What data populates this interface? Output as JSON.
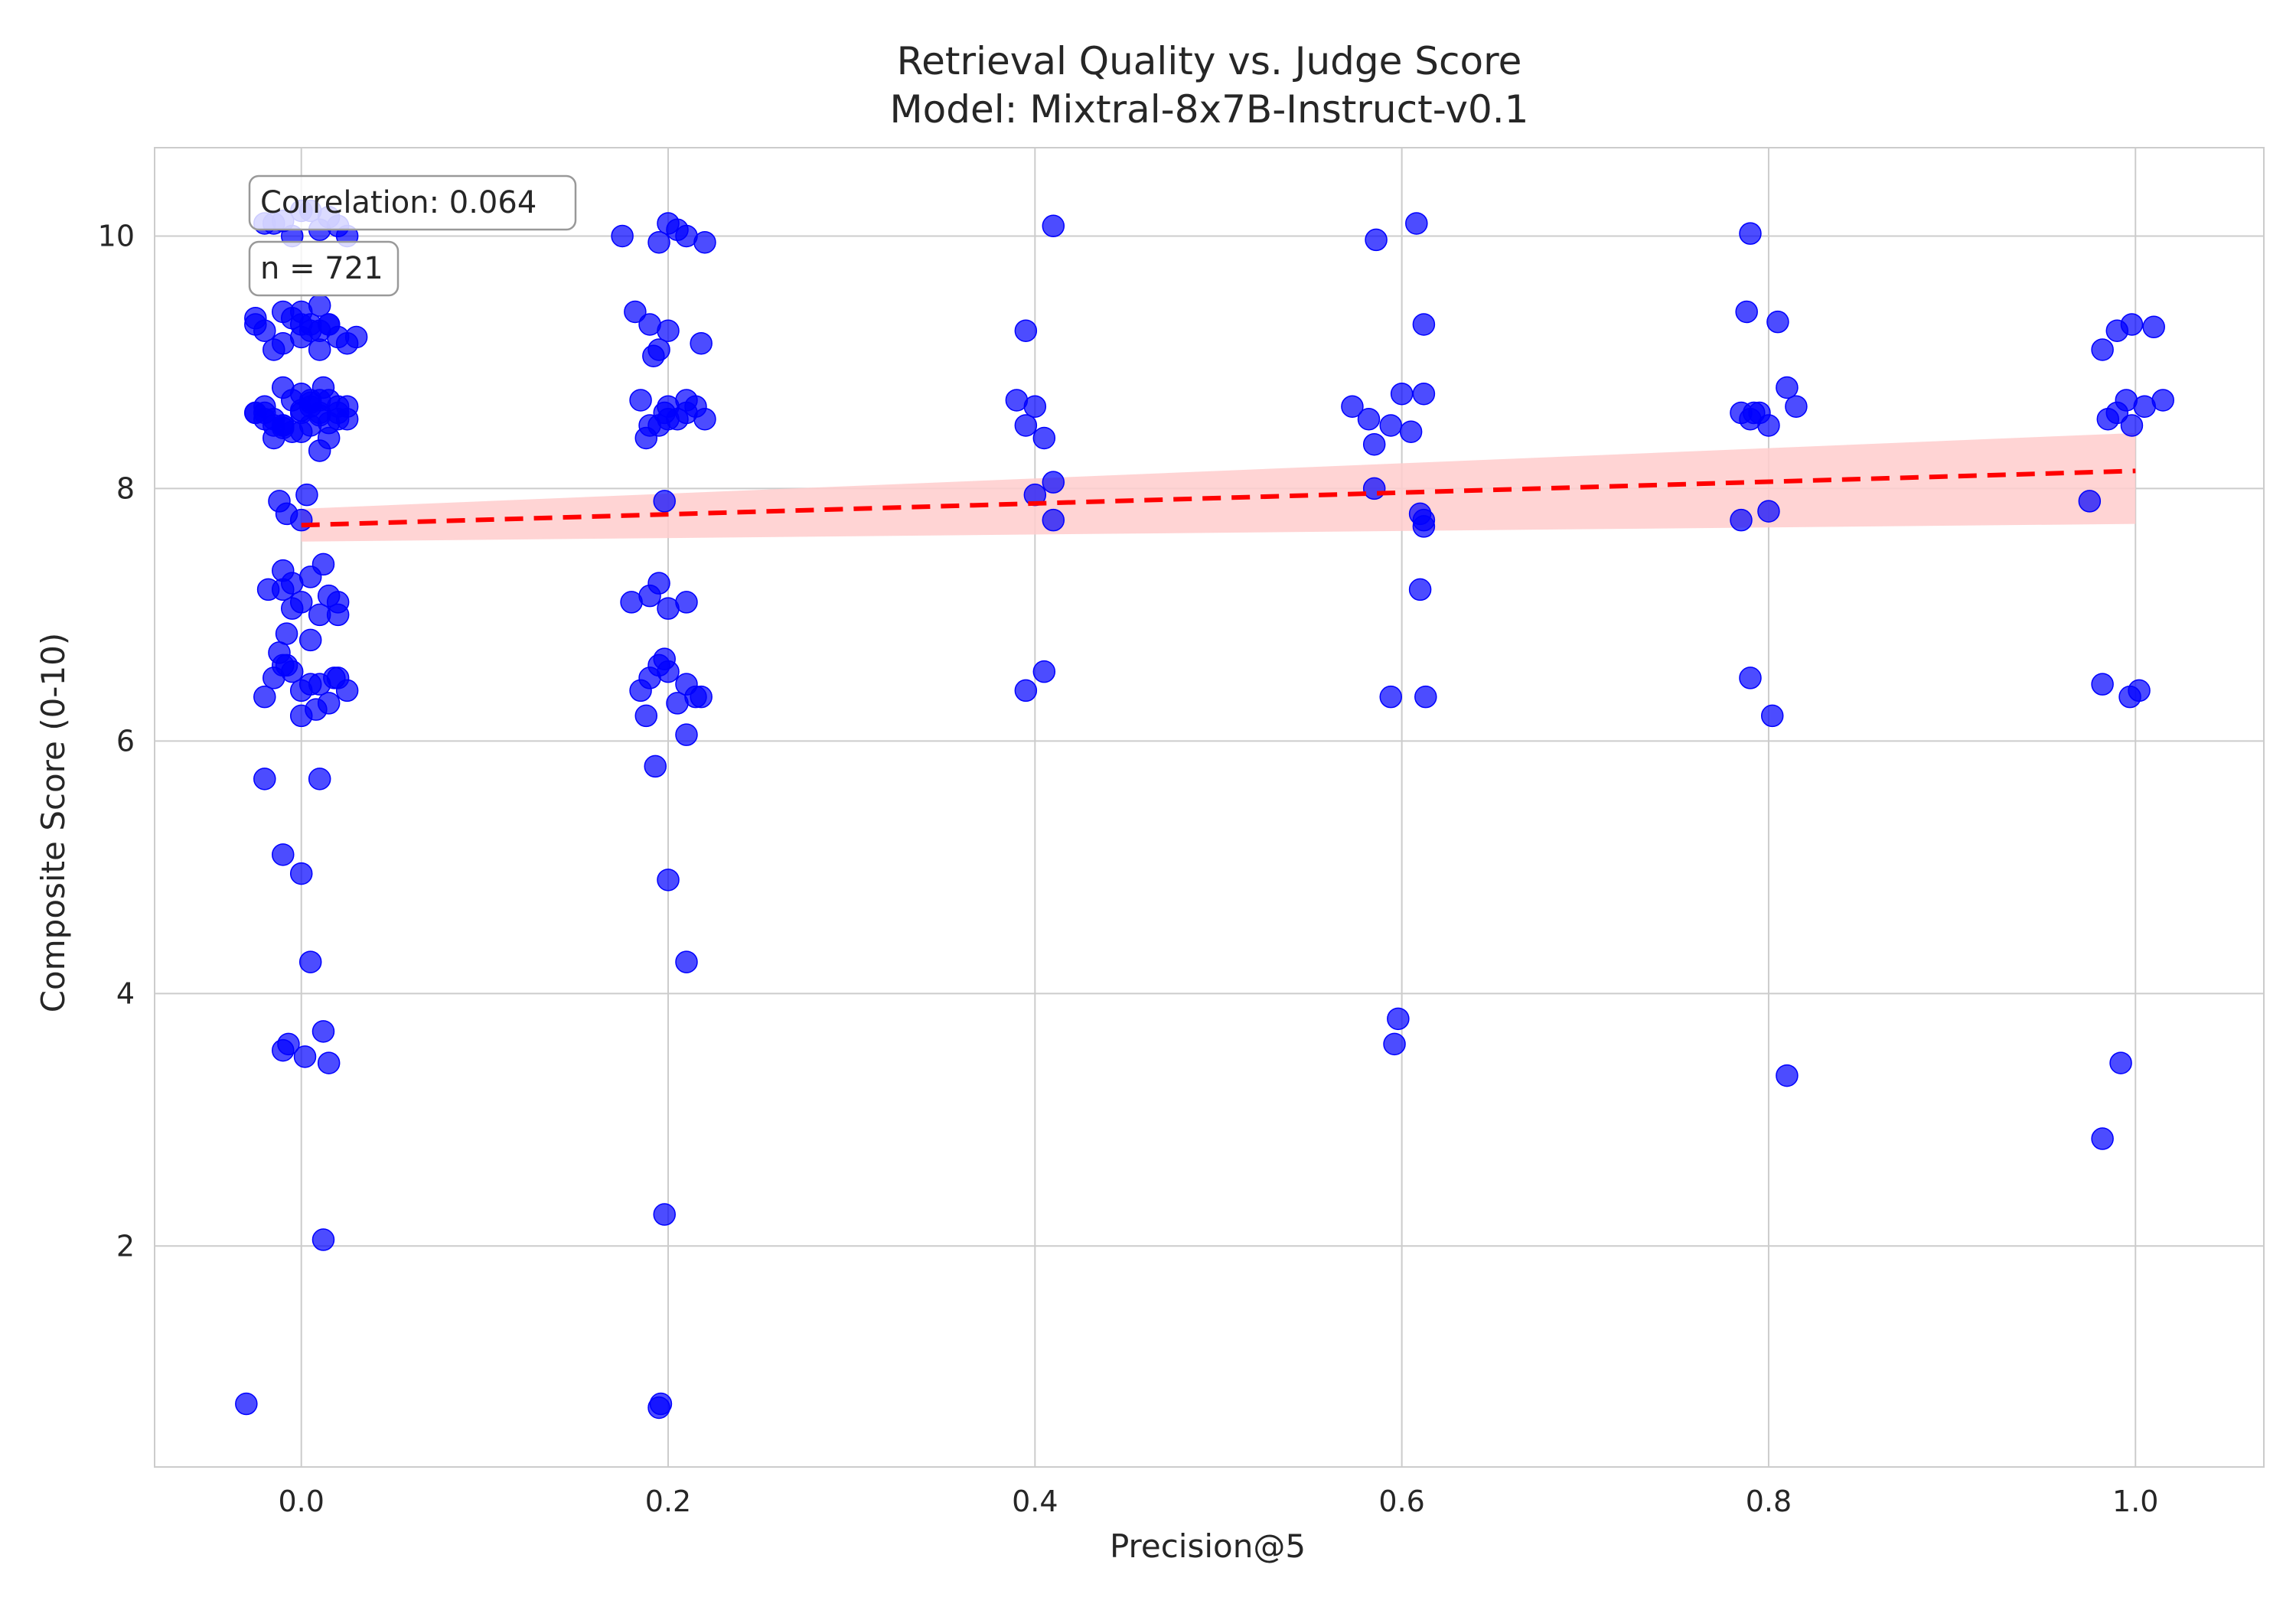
{
  "chart_data": {
    "type": "scatter",
    "title": "Retrieval Quality vs. Judge Score",
    "subtitle": "Model: Mixtral-8x7B-Instruct-v0.1",
    "xlabel": "Precision@5",
    "ylabel": "Composite Score (0-10)",
    "xlim": [
      -0.08,
      1.07
    ],
    "ylim": [
      0.25,
      10.7
    ],
    "x_ticks": [
      "0.0",
      "0.2",
      "0.4",
      "0.6",
      "0.8",
      "1.0"
    ],
    "y_ticks": [
      "2",
      "4",
      "6",
      "8",
      "10"
    ],
    "grid": true,
    "point_color": "#0000ff",
    "trend_color": "#ff0000",
    "band_color": "#ffcccc",
    "annotations": {
      "correlation": "Correlation: 0.064",
      "n": "n = 721"
    },
    "trend": {
      "x": [
        0.0,
        1.0
      ],
      "y": [
        7.71,
        8.14
      ],
      "lower": [
        7.58,
        7.72
      ],
      "upper": [
        7.84,
        8.44
      ]
    },
    "points": {
      "x": [
        0.0,
        0.015,
        -0.02,
        0.01,
        0.025,
        -0.015,
        0.005,
        -0.005,
        0.02,
        -0.01,
        0.0,
        0.01,
        -0.025,
        0.03,
        0.005,
        -0.01,
        0.0,
        -0.02,
        0.015,
        0.01,
        -0.015,
        0.02,
        -0.005,
        0.005,
        -0.025,
        0.025,
        0.0,
        0.01,
        -0.01,
        0.015,
        0.0,
        0.02,
        -0.02,
        -0.01,
        0.01,
        -0.025,
        0.025,
        0.005,
        -0.005,
        0.015,
        0.02,
        -0.015,
        0.0,
        0.01,
        -0.02,
        0.025,
        -0.01,
        0.005,
        -0.015,
        0.0,
        0.01,
        -0.01,
        0.005,
        0.015,
        -0.02,
        0.012,
        -0.025,
        0.0,
        0.01,
        -0.015,
        0.02,
        -0.005,
        0.015,
        -0.01,
        0.005,
        -0.015,
        0.0,
        0.01,
        -0.02,
        0.02,
        -0.005,
        0.015,
        0.025,
        -0.01,
        0.005,
        0.0,
        -0.012,
        0.008,
        -0.008,
        0.005,
        0.018,
        -0.012,
        0.003,
        -0.008,
        0.0,
        -0.01,
        0.0,
        0.015,
        -0.005,
        0.01,
        0.02,
        -0.018,
        -0.01,
        0.005,
        0.012,
        -0.005,
        0.02,
        -0.008,
        -0.02,
        -0.01,
        0.0,
        0.01,
        0.005,
        0.012,
        -0.007,
        0.002,
        -0.01,
        0.015,
        -0.03,
        0.175,
        0.2,
        0.21,
        0.22,
        0.195,
        0.205,
        0.182,
        0.19,
        0.2,
        0.218,
        0.195,
        0.192,
        0.185,
        0.2,
        0.21,
        0.22,
        0.19,
        0.205,
        0.215,
        0.198,
        0.195,
        0.21,
        0.188,
        0.2,
        0.198,
        0.18,
        0.195,
        0.21,
        0.19,
        0.2,
        0.19,
        0.2,
        0.21,
        0.185,
        0.215,
        0.195,
        0.205,
        0.188,
        0.218,
        0.193,
        0.2,
        0.21,
        0.198,
        0.21,
        0.196,
        0.195,
        0.198,
        0.41,
        0.395,
        0.39,
        0.4,
        0.395,
        0.405,
        0.41,
        0.4,
        0.41,
        0.405,
        0.395,
        0.608,
        0.586,
        0.612,
        0.573,
        0.6,
        0.582,
        0.594,
        0.605,
        0.612,
        0.585,
        0.61,
        0.585,
        0.612,
        0.61,
        0.613,
        0.594,
        0.612,
        0.598,
        0.596,
        0.79,
        0.788,
        0.805,
        0.785,
        0.795,
        0.81,
        0.8,
        0.815,
        0.79,
        0.785,
        0.8,
        0.79,
        0.802,
        0.792,
        0.81,
        0.998,
        0.99,
        1.01,
        0.982,
        0.985,
        0.995,
        1.005,
        1.015,
        0.99,
        0.998,
        0.975,
        0.982,
        0.997,
        1.002,
        0.992,
        0.982,
        0.012
      ],
      "y": [
        10.2,
        10.15,
        10.1,
        10.05,
        10.0,
        10.1,
        10.2,
        10.0,
        10.08,
        10.12,
        9.3,
        9.25,
        9.35,
        9.2,
        9.3,
        9.15,
        9.4,
        9.25,
        9.3,
        9.45,
        9.1,
        9.2,
        9.35,
        9.25,
        9.3,
        9.15,
        9.2,
        9.1,
        9.4,
        9.3,
        8.6,
        8.55,
        8.65,
        8.5,
        8.7,
        8.6,
        8.55,
        8.65,
        8.45,
        8.7,
        8.6,
        8.5,
        8.75,
        8.6,
        8.55,
        8.65,
        8.8,
        8.5,
        8.4,
        8.45,
        8.3,
        8.5,
        8.7,
        8.4,
        8.6,
        8.8,
        8.6,
        8.62,
        8.58,
        8.55,
        8.65,
        8.7,
        8.52,
        8.48,
        8.68,
        6.5,
        6.4,
        6.45,
        6.35,
        6.5,
        6.55,
        6.3,
        6.4,
        6.6,
        6.45,
        6.2,
        6.7,
        6.25,
        6.6,
        6.8,
        6.5,
        7.9,
        7.95,
        7.8,
        7.75,
        7.2,
        7.1,
        7.15,
        7.25,
        7.0,
        7.1,
        7.2,
        7.35,
        7.3,
        7.4,
        7.05,
        7.0,
        6.85,
        5.7,
        5.1,
        4.95,
        5.7,
        4.25,
        3.7,
        3.6,
        3.5,
        3.55,
        3.45,
        0.75,
        10.0,
        10.1,
        10.0,
        9.95,
        9.95,
        10.05,
        9.4,
        9.3,
        9.25,
        9.15,
        9.1,
        9.05,
        8.7,
        8.65,
        8.6,
        8.55,
        8.5,
        8.55,
        8.65,
        8.6,
        8.5,
        8.7,
        8.4,
        8.55,
        7.9,
        7.1,
        7.25,
        7.1,
        7.15,
        7.05,
        6.5,
        6.55,
        6.45,
        6.4,
        6.35,
        6.6,
        6.3,
        6.2,
        6.35,
        5.8,
        4.9,
        4.25,
        2.25,
        6.05,
        0.75,
        0.72,
        6.65,
        10.08,
        9.25,
        8.7,
        8.65,
        8.5,
        8.4,
        8.05,
        7.95,
        7.75,
        6.55,
        6.4,
        10.1,
        9.97,
        9.3,
        8.65,
        8.75,
        8.55,
        8.5,
        8.45,
        8.75,
        8.0,
        7.8,
        8.35,
        7.75,
        7.2,
        6.35,
        6.35,
        7.7,
        3.8,
        3.6,
        10.02,
        9.4,
        9.32,
        8.6,
        8.6,
        8.8,
        8.5,
        8.65,
        8.55,
        7.75,
        7.82,
        6.5,
        6.2,
        8.6,
        3.35,
        9.3,
        9.25,
        9.28,
        9.1,
        8.55,
        8.7,
        8.65,
        8.7,
        8.6,
        8.5,
        7.9,
        6.45,
        6.35,
        6.4,
        3.45,
        2.85,
        2.05
      ]
    }
  }
}
